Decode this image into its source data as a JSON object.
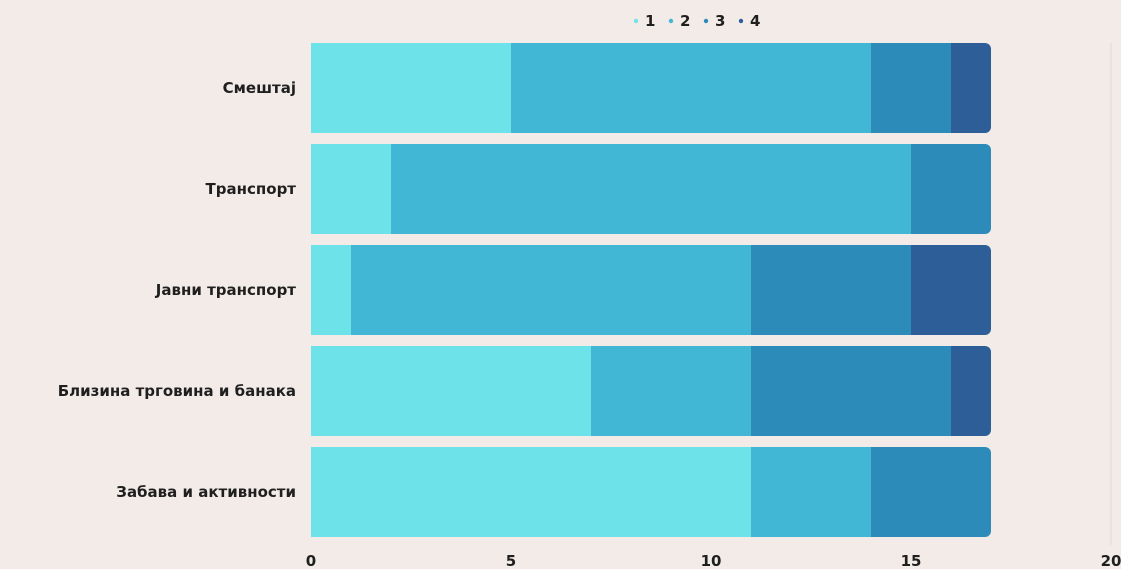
{
  "chart_data": {
    "type": "bar",
    "orientation": "horizontal",
    "stacked": true,
    "categories": [
      "Смештај",
      "Транспорт",
      "Јавни транспорт",
      "Близина трговина и банака",
      "Забава и активности"
    ],
    "series": [
      {
        "name": "1",
        "color": "#6de3e9",
        "values": [
          5,
          2,
          1,
          7,
          11
        ]
      },
      {
        "name": "2",
        "color": "#42b7d5",
        "values": [
          9,
          13,
          10,
          4,
          3
        ]
      },
      {
        "name": "3",
        "color": "#2c8bb8",
        "values": [
          2,
          2,
          4,
          5,
          3
        ]
      },
      {
        "name": "4",
        "color": "#2d5e97",
        "values": [
          1,
          0,
          2,
          1,
          0
        ]
      }
    ],
    "xlim": [
      0,
      20
    ],
    "xticks": [
      "0",
      "5",
      "10",
      "15",
      "20"
    ],
    "title": "",
    "xlabel": "",
    "ylabel": "",
    "legend_position": "top",
    "grid": false
  }
}
